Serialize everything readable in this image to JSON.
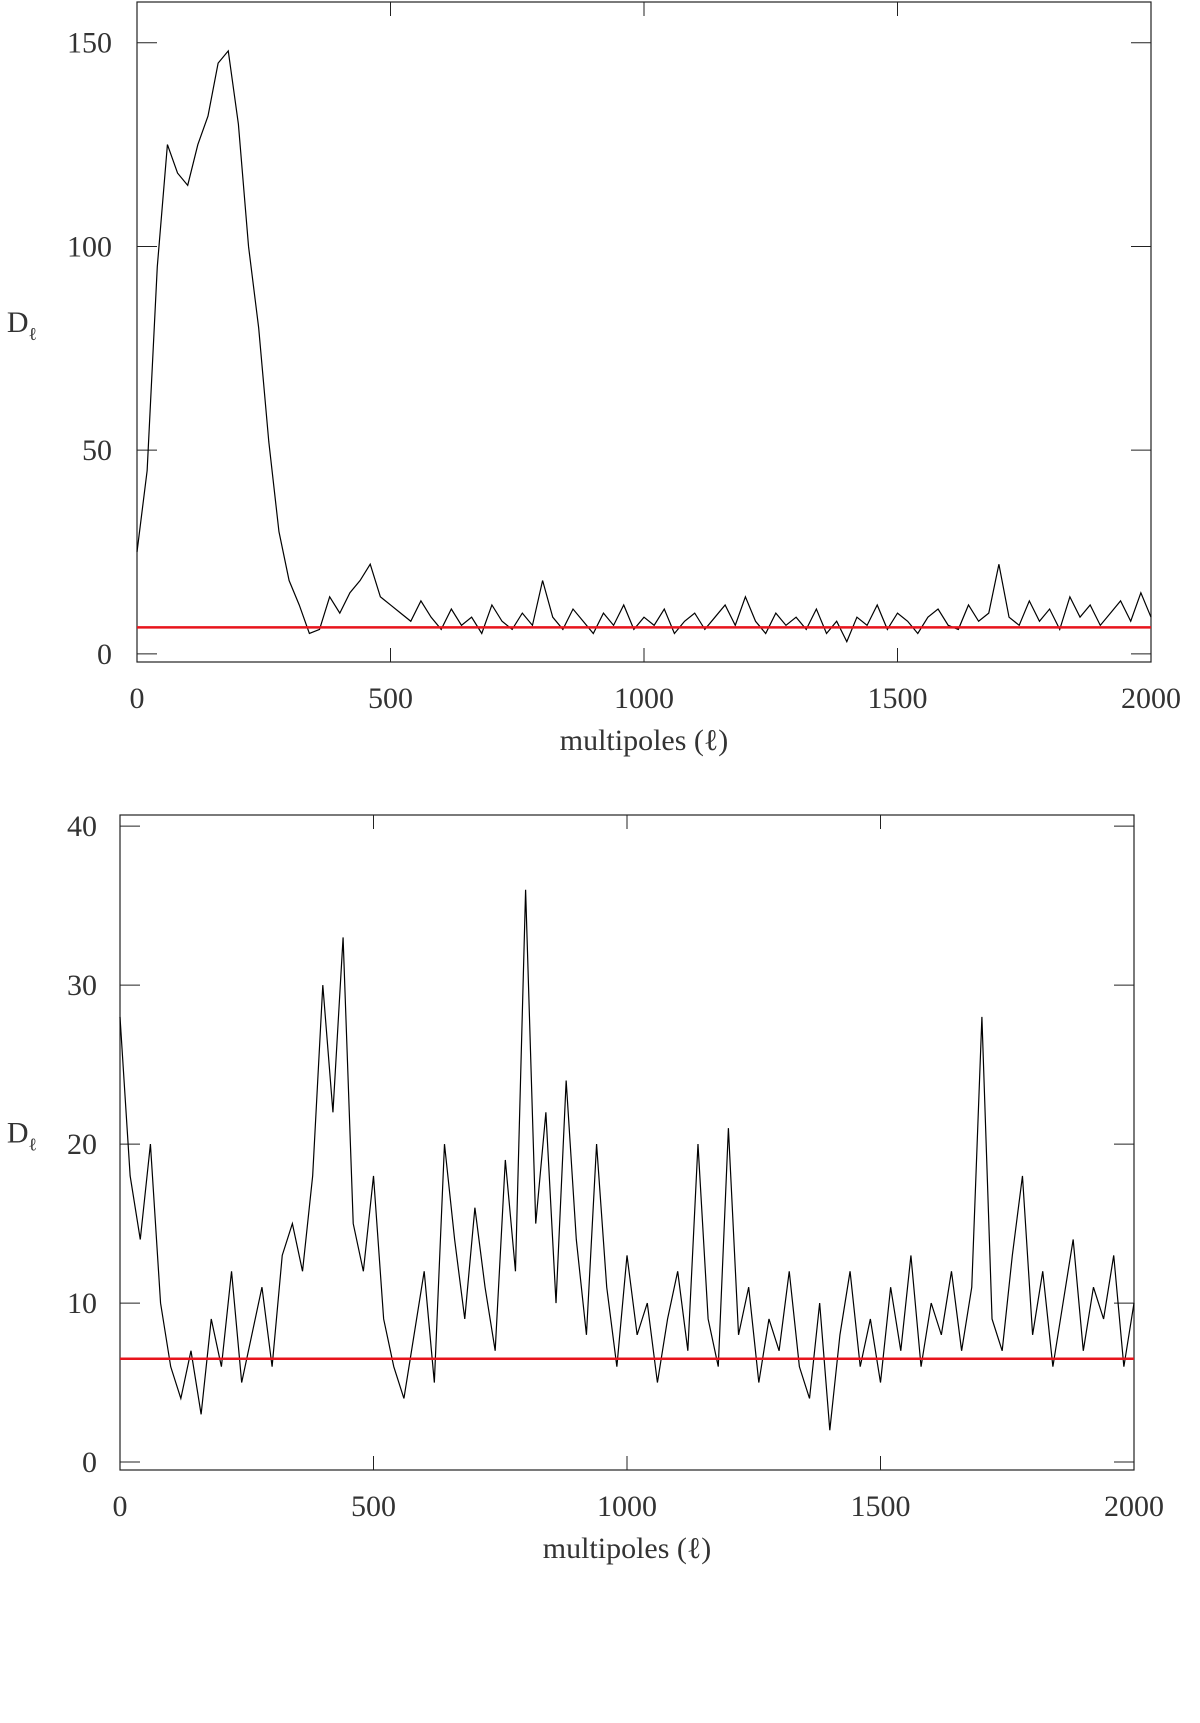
{
  "chart_data": [
    {
      "type": "line",
      "xlabel": "multipoles (ℓ)",
      "ylabel": "D",
      "ylabel_sub": "ℓ",
      "color": "#000000",
      "xlim": [
        0,
        2000
      ],
      "ylim": [
        -2,
        160
      ],
      "xticks": [
        0,
        500,
        1000,
        1500,
        2000
      ],
      "yticks": [
        0,
        50,
        100,
        150
      ],
      "x": [
        0,
        20,
        40,
        60,
        80,
        100,
        120,
        140,
        160,
        180,
        200,
        220,
        240,
        260,
        280,
        300,
        320,
        340,
        360,
        380,
        400,
        420,
        440,
        460,
        480,
        500,
        520,
        540,
        560,
        580,
        600,
        620,
        640,
        660,
        680,
        700,
        720,
        740,
        760,
        780,
        800,
        820,
        840,
        860,
        880,
        900,
        920,
        940,
        960,
        980,
        1000,
        1020,
        1040,
        1060,
        1080,
        1100,
        1120,
        1140,
        1160,
        1180,
        1200,
        1220,
        1240,
        1260,
        1280,
        1300,
        1320,
        1340,
        1360,
        1380,
        1400,
        1420,
        1440,
        1460,
        1480,
        1500,
        1520,
        1540,
        1560,
        1580,
        1600,
        1620,
        1640,
        1660,
        1680,
        1700,
        1720,
        1740,
        1760,
        1780,
        1800,
        1820,
        1840,
        1860,
        1880,
        1900,
        1920,
        1940,
        1960,
        1980,
        2000
      ],
      "values": [
        25,
        45,
        95,
        125,
        118,
        115,
        125,
        132,
        145,
        148,
        130,
        100,
        80,
        52,
        30,
        18,
        12,
        5,
        6,
        14,
        10,
        15,
        18,
        22,
        14,
        12,
        10,
        8,
        13,
        9,
        6,
        11,
        7,
        9,
        5,
        12,
        8,
        6,
        10,
        7,
        18,
        9,
        6,
        11,
        8,
        5,
        10,
        7,
        12,
        6,
        9,
        7,
        11,
        5,
        8,
        10,
        6,
        9,
        12,
        7,
        14,
        8,
        5,
        10,
        7,
        9,
        6,
        11,
        5,
        8,
        3,
        9,
        7,
        12,
        6,
        10,
        8,
        5,
        9,
        11,
        7,
        6,
        12,
        8,
        10,
        22,
        9,
        7,
        13,
        8,
        11,
        6,
        14,
        9,
        12,
        7,
        10,
        13,
        8,
        15,
        9
      ],
      "reference_line": {
        "value": 6.5,
        "color": "#e8141c"
      }
    },
    {
      "type": "line",
      "xlabel": "multipoles (ℓ)",
      "ylabel": "D",
      "ylabel_sub": "ℓ",
      "color": "#000000",
      "xlim": [
        0,
        2000
      ],
      "ylim": [
        -0.5,
        40.7
      ],
      "xticks": [
        0,
        500,
        1000,
        1500,
        2000
      ],
      "yticks": [
        0,
        10,
        20,
        30,
        40
      ],
      "x": [
        0,
        20,
        40,
        60,
        80,
        100,
        120,
        140,
        160,
        180,
        200,
        220,
        240,
        260,
        280,
        300,
        320,
        340,
        360,
        380,
        400,
        420,
        440,
        460,
        480,
        500,
        520,
        540,
        560,
        580,
        600,
        620,
        640,
        660,
        680,
        700,
        720,
        740,
        760,
        780,
        800,
        820,
        840,
        860,
        880,
        900,
        920,
        940,
        960,
        980,
        1000,
        1020,
        1040,
        1060,
        1080,
        1100,
        1120,
        1140,
        1160,
        1180,
        1200,
        1220,
        1240,
        1260,
        1280,
        1300,
        1320,
        1340,
        1360,
        1380,
        1400,
        1420,
        1440,
        1460,
        1480,
        1500,
        1520,
        1540,
        1560,
        1580,
        1600,
        1620,
        1640,
        1660,
        1680,
        1700,
        1720,
        1740,
        1760,
        1780,
        1800,
        1820,
        1840,
        1860,
        1880,
        1900,
        1920,
        1940,
        1960,
        1980,
        2000
      ],
      "values": [
        28,
        18,
        14,
        20,
        10,
        6,
        4,
        7,
        3,
        9,
        6,
        12,
        5,
        8,
        11,
        6,
        13,
        15,
        12,
        18,
        30,
        22,
        33,
        15,
        12,
        18,
        9,
        6,
        4,
        8,
        12,
        5,
        20,
        14,
        9,
        16,
        11,
        7,
        19,
        12,
        36,
        15,
        22,
        10,
        24,
        14,
        8,
        20,
        11,
        6,
        13,
        8,
        10,
        5,
        9,
        12,
        7,
        20,
        9,
        6,
        21,
        8,
        11,
        5,
        9,
        7,
        12,
        6,
        4,
        10,
        2,
        8,
        12,
        6,
        9,
        5,
        11,
        7,
        13,
        6,
        10,
        8,
        12,
        7,
        11,
        28,
        9,
        7,
        13,
        18,
        8,
        12,
        6,
        10,
        14,
        7,
        11,
        9,
        13,
        6,
        10
      ],
      "reference_line": {
        "value": 6.5,
        "color": "#e8141c"
      }
    }
  ]
}
